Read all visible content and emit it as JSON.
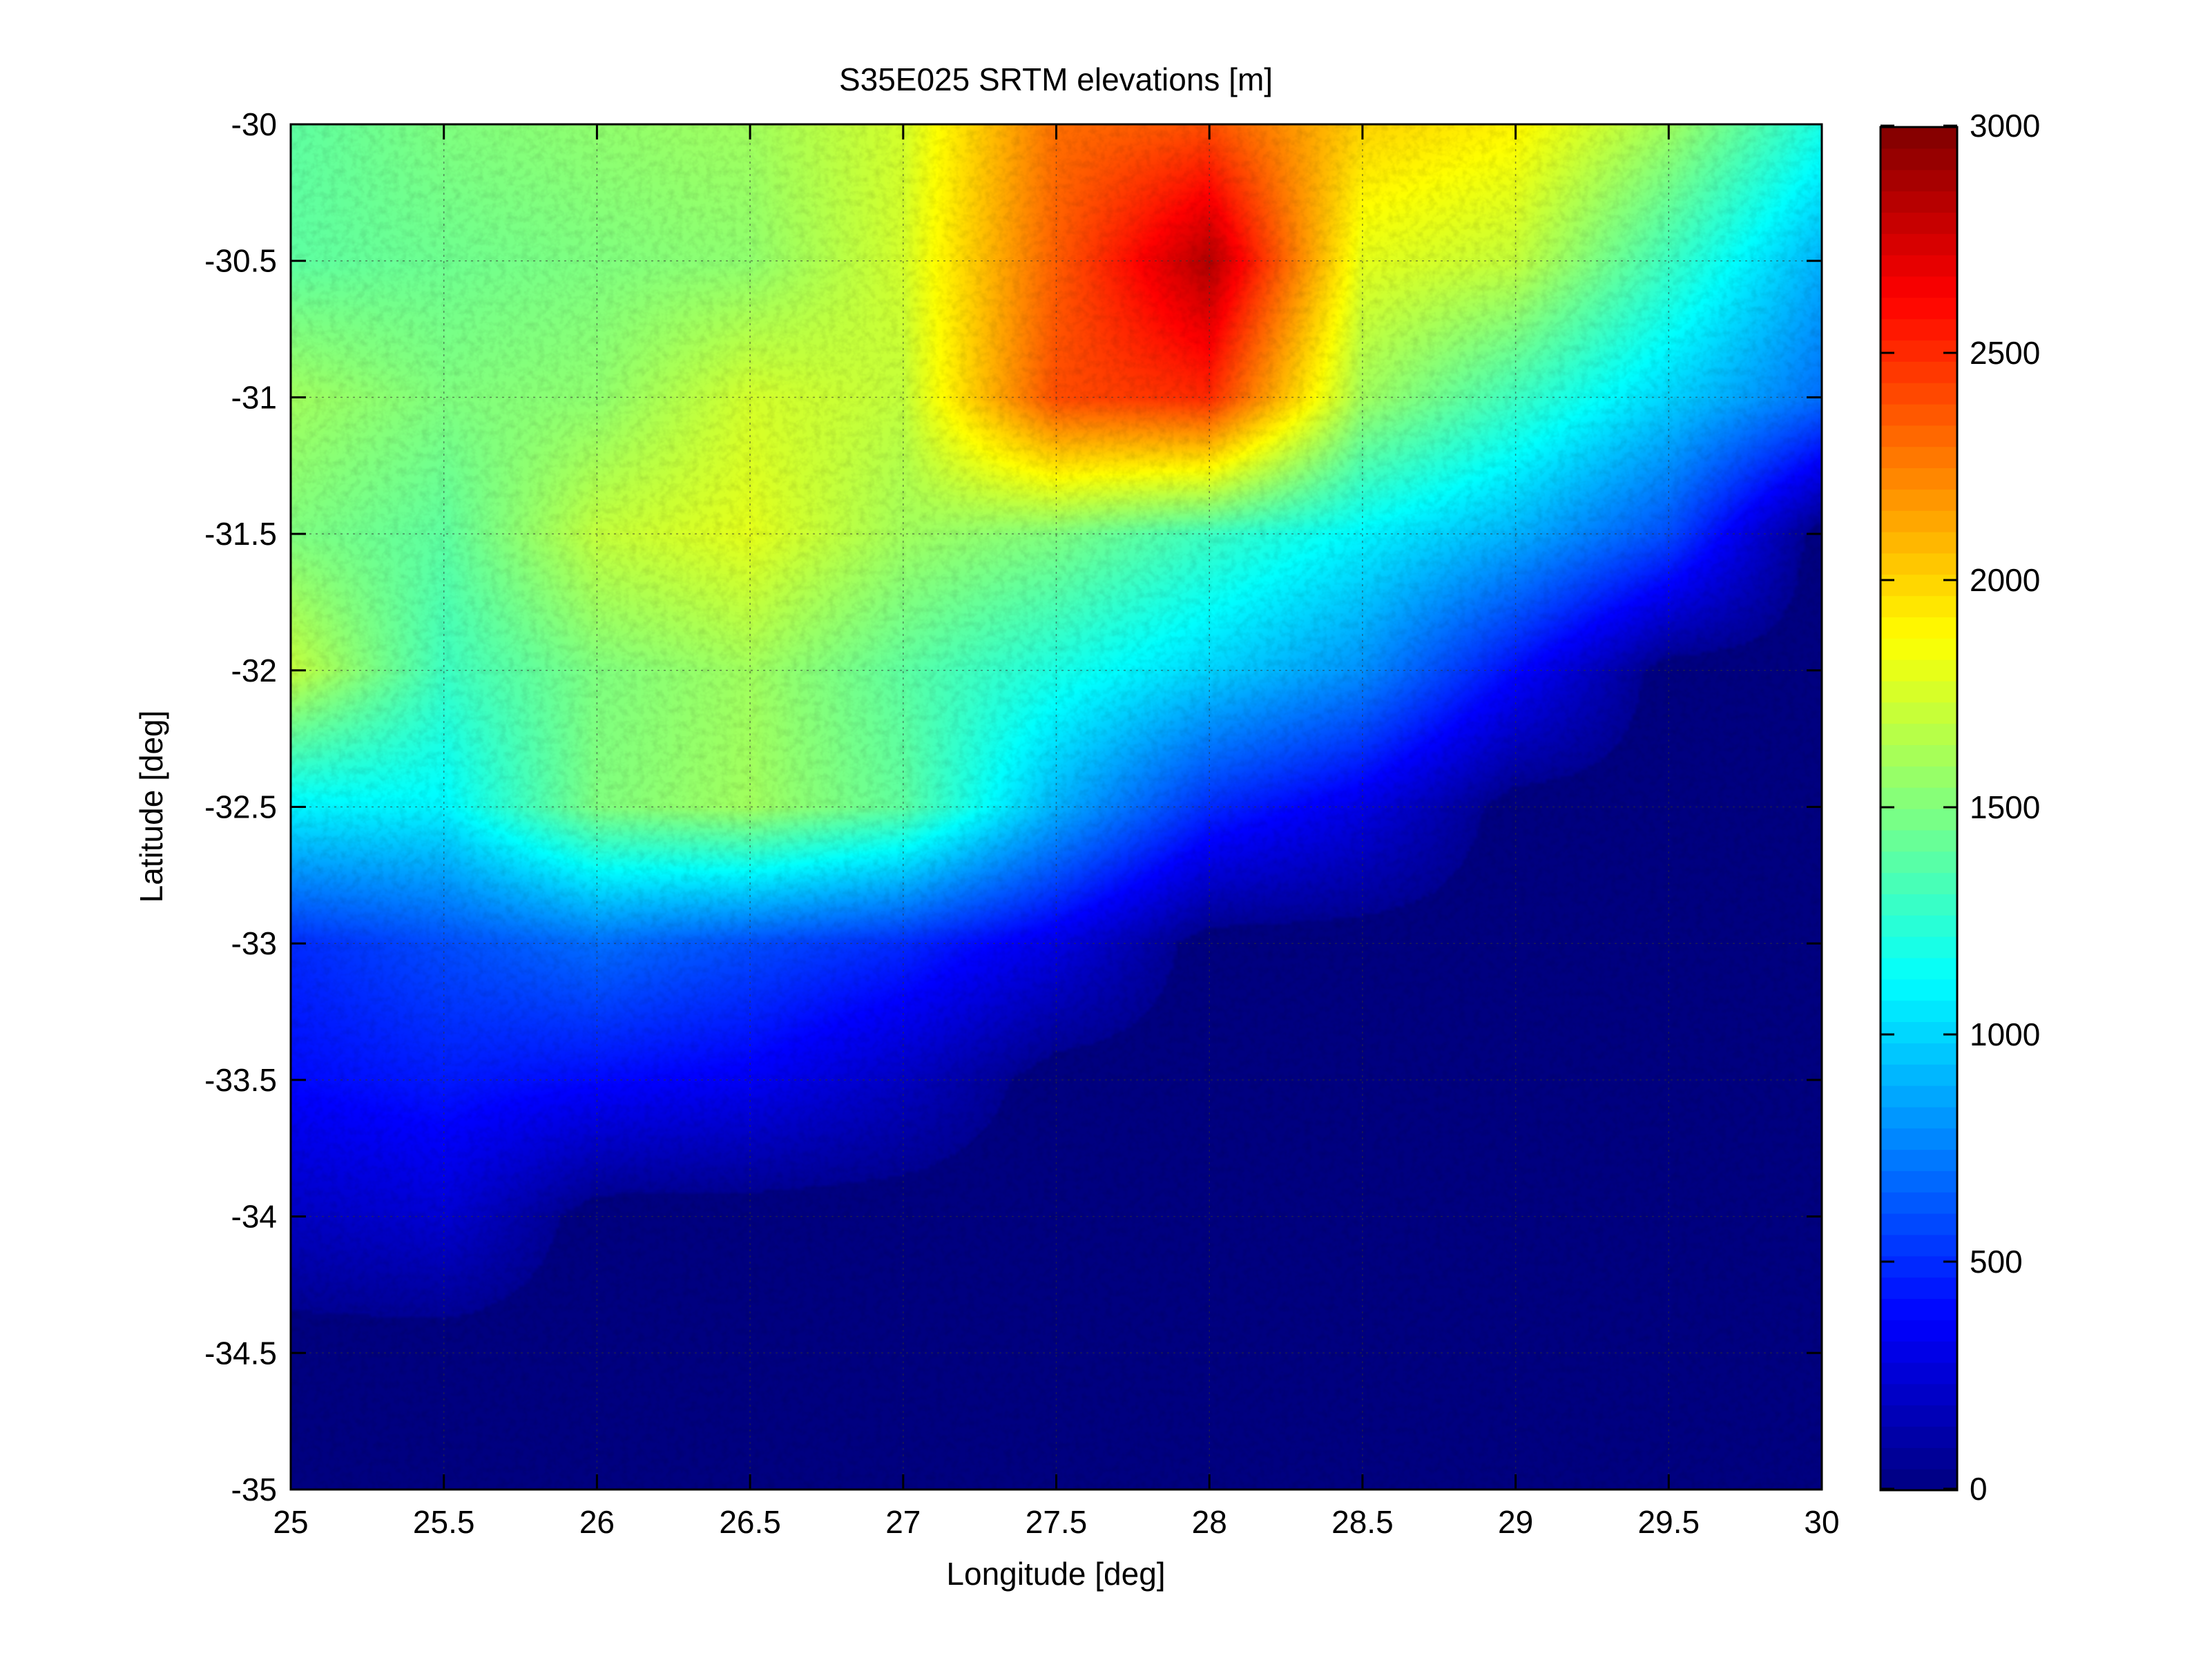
{
  "chart_data": {
    "type": "heatmap",
    "title": "S35E025 SRTM elevations [m]",
    "xlabel": "Longitude [deg]",
    "ylabel": "Latitude [deg]",
    "xlim": [
      25,
      30
    ],
    "ylim": [
      -35,
      -30
    ],
    "x_ticks": [
      25,
      25.5,
      26,
      26.5,
      27,
      27.5,
      28,
      28.5,
      29,
      29.5,
      30
    ],
    "x_tick_labels": [
      "25",
      "25.5",
      "26",
      "26.5",
      "27",
      "27.5",
      "28",
      "28.5",
      "29",
      "29.5",
      "30"
    ],
    "y_ticks": [
      -30,
      -30.5,
      -31,
      -31.5,
      -32,
      -32.5,
      -33,
      -33.5,
      -34,
      -34.5,
      -35
    ],
    "y_tick_labels": [
      "-30",
      "-30.5",
      "-31",
      "-31.5",
      "-32",
      "-32.5",
      "-33",
      "-33.5",
      "-34",
      "-34.5",
      "-35"
    ],
    "grid": true,
    "colormap": "jet",
    "colorbar": {
      "range": [
        0,
        3000
      ],
      "ticks": [
        0,
        500,
        1000,
        1500,
        2000,
        2500,
        3000
      ],
      "tick_labels": [
        "0",
        "500",
        "1000",
        "1500",
        "2000",
        "2500",
        "3000"
      ],
      "position": "right"
    },
    "elevation_grid": {
      "longitudes": [
        25.0,
        25.5,
        26.0,
        26.5,
        27.0,
        27.5,
        28.0,
        28.5,
        29.0,
        29.5,
        30.0
      ],
      "latitudes": [
        -30.0,
        -30.5,
        -31.0,
        -31.5,
        -32.0,
        -32.5,
        -33.0,
        -33.5,
        -34.0,
        -34.5,
        -35.0
      ],
      "values": [
        [
          1400,
          1500,
          1550,
          1600,
          1750,
          2300,
          2400,
          2000,
          1900,
          1600,
          1200
        ],
        [
          1400,
          1450,
          1500,
          1550,
          1750,
          2350,
          2850,
          1800,
          1700,
          1300,
          900
        ],
        [
          1600,
          1500,
          1550,
          1750,
          1700,
          2400,
          2500,
          1600,
          1300,
          1000,
          700
        ],
        [
          1500,
          1400,
          1700,
          1800,
          1600,
          1500,
          1300,
          1100,
          900,
          600,
          0
        ],
        [
          1700,
          1300,
          1500,
          1600,
          1400,
          1200,
          1000,
          800,
          400,
          0,
          0
        ],
        [
          1100,
          1100,
          1500,
          1600,
          1400,
          900,
          500,
          300,
          0,
          0,
          0
        ],
        [
          500,
          600,
          700,
          600,
          500,
          300,
          0,
          0,
          0,
          0,
          0
        ],
        [
          400,
          450,
          400,
          350,
          200,
          0,
          0,
          0,
          0,
          0,
          0
        ],
        [
          200,
          250,
          0,
          0,
          0,
          0,
          0,
          0,
          0,
          0,
          0
        ],
        [
          0,
          0,
          0,
          0,
          0,
          0,
          0,
          0,
          0,
          0,
          0
        ],
        [
          0,
          0,
          0,
          0,
          0,
          0,
          0,
          0,
          0,
          0,
          0
        ]
      ]
    }
  }
}
